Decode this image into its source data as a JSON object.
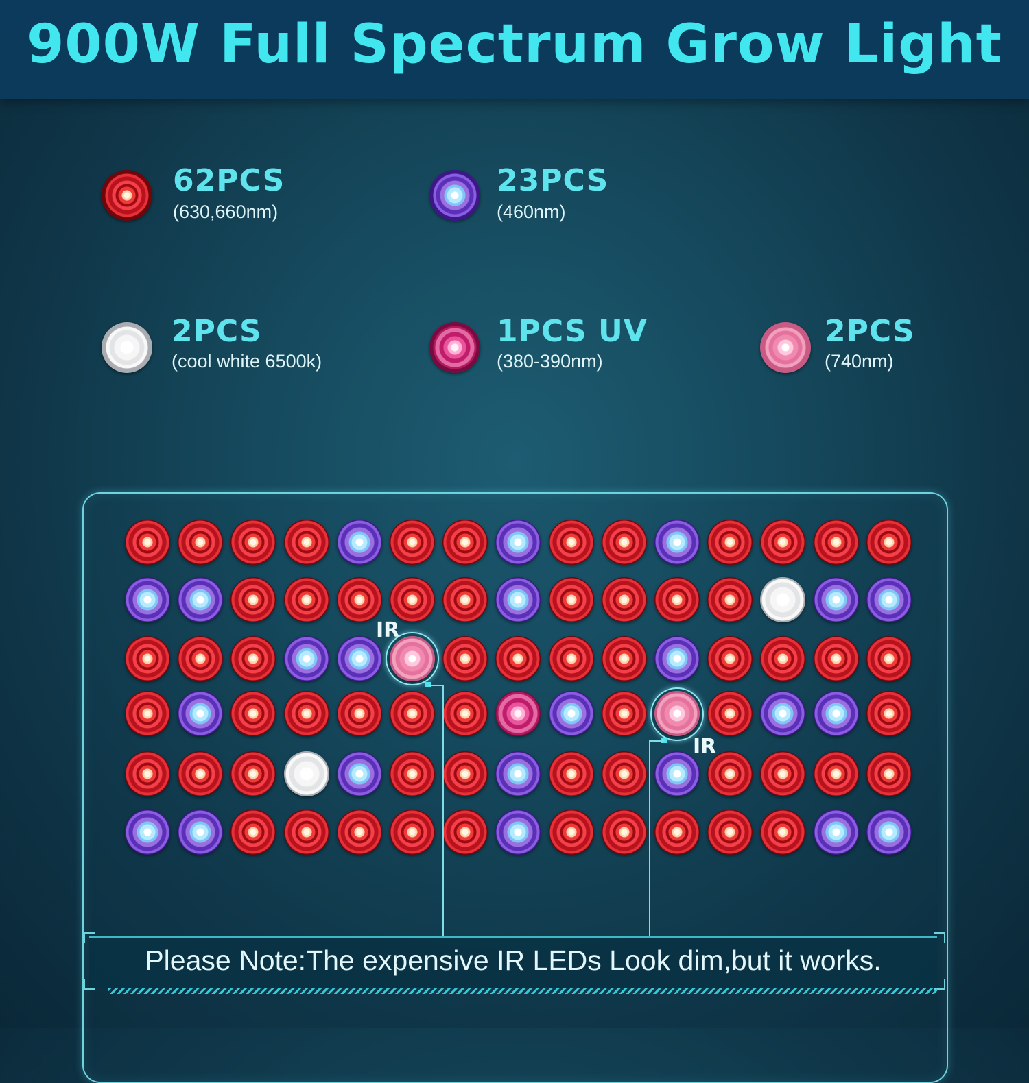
{
  "title": "900W Full Spectrum Grow Light",
  "legend": [
    {
      "count": "62PCS",
      "wavelength": "(630,660nm)",
      "color": "red"
    },
    {
      "count": "23PCS",
      "wavelength": "(460nm)",
      "color": "blue"
    },
    {
      "count": "2PCS",
      "wavelength": "(cool white 6500k)",
      "color": "white"
    },
    {
      "count": "1PCS UV",
      "wavelength": "(380-390nm)",
      "color": "pink"
    },
    {
      "count": "2PCS",
      "wavelength": "(740nm)",
      "color": "ir"
    }
  ],
  "led_grid": [
    [
      "red",
      "red",
      "red",
      "red",
      "blue",
      "red",
      "red",
      "blue",
      "red",
      "red",
      "blue",
      "red",
      "red",
      "red",
      "red"
    ],
    [
      "blue",
      "blue",
      "red",
      "red",
      "red",
      "red",
      "red",
      "blue",
      "red",
      "red",
      "red",
      "red",
      "white",
      "blue",
      "blue"
    ],
    [
      "red",
      "red",
      "red",
      "blue",
      "blue",
      "ir",
      "red",
      "red",
      "red",
      "red",
      "blue",
      "red",
      "red",
      "red",
      "red"
    ],
    [
      "red",
      "blue",
      "red",
      "red",
      "red",
      "red",
      "red",
      "pink",
      "blue",
      "red",
      "ir",
      "red",
      "blue",
      "blue",
      "red"
    ],
    [
      "red",
      "red",
      "red",
      "white",
      "blue",
      "red",
      "red",
      "blue",
      "red",
      "red",
      "blue",
      "red",
      "red",
      "red",
      "red"
    ],
    [
      "blue",
      "blue",
      "red",
      "red",
      "red",
      "red",
      "red",
      "blue",
      "red",
      "red",
      "red",
      "red",
      "red",
      "blue",
      "blue"
    ]
  ],
  "ir_label": "IR",
  "note": "Please Note:The expensive IR LEDs Look dim,but it works."
}
